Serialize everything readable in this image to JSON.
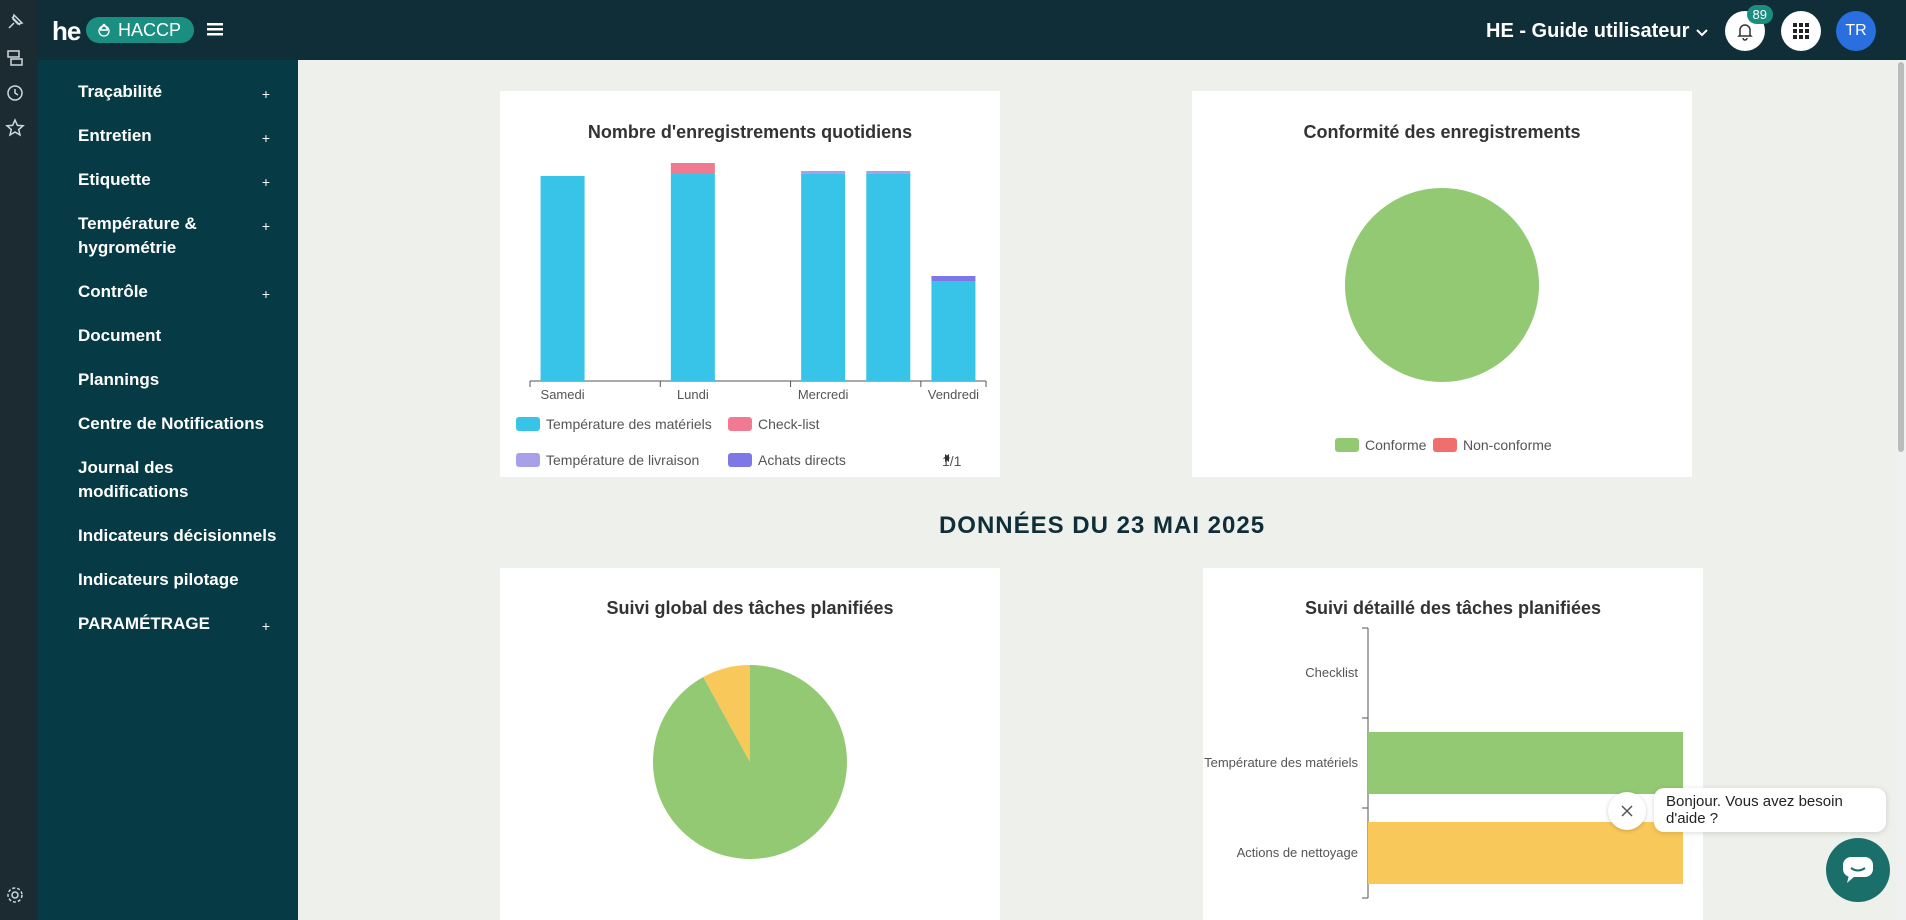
{
  "header": {
    "logo": "he",
    "app_name": "HACCP",
    "site": "HE - Guide utilisateur",
    "notifications_count": "89",
    "avatar_initials": "TR"
  },
  "rail": {
    "icons": [
      "pin-icon",
      "database-icon",
      "clock-icon",
      "star-icon",
      "gear-icon"
    ]
  },
  "sidebar": {
    "items": [
      {
        "label": "Traçabilité",
        "expand": "+"
      },
      {
        "label": "Entretien",
        "expand": "+"
      },
      {
        "label": "Etiquette",
        "expand": "+"
      },
      {
        "label": "Température & hygrométrie",
        "expand": "+"
      },
      {
        "label": "Contrôle",
        "expand": "+"
      },
      {
        "label": "Document",
        "expand": ""
      },
      {
        "label": "Plannings",
        "expand": ""
      },
      {
        "label": "Centre de Notifications",
        "expand": ""
      },
      {
        "label": "Journal des modifications",
        "expand": ""
      },
      {
        "label": "Indicateurs décisionnels",
        "expand": ""
      },
      {
        "label": "Indicateurs pilotage",
        "expand": ""
      },
      {
        "label": "PARAMÉTRAGE",
        "expand": "+"
      }
    ]
  },
  "section_title": "DONNÉES DU 23 MAI 2025",
  "colors": {
    "temp_materiels": "#38c4e8",
    "check_list": "#f07a92",
    "temp_livraison": "#a8a0ea",
    "achats_directs": "#8077e6",
    "green": "#93c973",
    "yellow": "#f9c85a",
    "red": "#ef6f6f"
  },
  "chart_data": [
    {
      "type": "bar",
      "title": "Nombre d'enregistrements quotidiens",
      "categories": [
        "Samedi",
        "",
        "Lundi",
        "",
        "Mercredi",
        "",
        "Vendredi"
      ],
      "tick_labels": [
        "Samedi",
        "Lundi",
        "Mercredi",
        "Vendredi"
      ],
      "stacked": true,
      "series": [
        {
          "name": "Température des matériels",
          "values": [
            205,
            0,
            208,
            0,
            207,
            207,
            100
          ]
        },
        {
          "name": "Check-list",
          "values": [
            0,
            0,
            10,
            0,
            0,
            0,
            0
          ]
        },
        {
          "name": "Température de livraison",
          "values": [
            0,
            0,
            0,
            0,
            3,
            3,
            0
          ]
        },
        {
          "name": "Achats directs",
          "values": [
            0,
            0,
            0,
            0,
            0,
            0,
            5
          ]
        }
      ],
      "ylim": [
        0,
        220
      ],
      "pagination": "1/1"
    },
    {
      "type": "pie",
      "title": "Conformité des enregistrements",
      "labels": [
        "Conforme",
        "Non-conforme"
      ],
      "values": [
        100,
        0
      ]
    },
    {
      "type": "pie",
      "title": "Suivi global des tâches planifiées",
      "values": [
        92,
        8
      ],
      "legend_partial": true
    },
    {
      "type": "bar",
      "orientation": "horizontal",
      "title": "Suivi détaillé des tâches planifiées",
      "categories": [
        "Checklist",
        "Température des matériels",
        "Actions de nettoyage"
      ],
      "values": [
        0,
        100,
        100
      ],
      "xlim": [
        0,
        100
      ]
    }
  ],
  "chat": {
    "message": "Bonjour. Vous avez besoin d'aide ?"
  }
}
